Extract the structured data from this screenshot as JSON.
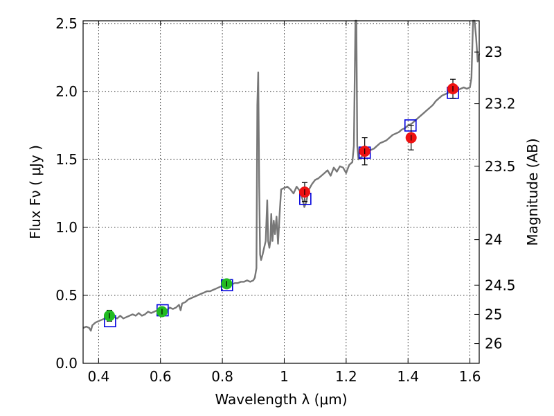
{
  "chart_data": {
    "type": "scatter",
    "xlabel": "Wavelength  λ (μm)",
    "ylabel": "Flux  Fν  ( μJy )",
    "ylabel_right": "Magnitude (AB)",
    "xlim": [
      0.35,
      1.63
    ],
    "ylim": [
      0.0,
      2.52
    ],
    "grid": true,
    "x_ticks": [
      0.4,
      0.6,
      0.8,
      1.0,
      1.2,
      1.4,
      1.6
    ],
    "x_tick_labels": [
      "0.4",
      "0.6",
      "0.8",
      "1",
      "1.2",
      "1.4",
      "1.6"
    ],
    "y_ticks": [
      0.0,
      0.5,
      1.0,
      1.5,
      2.0,
      2.5
    ],
    "y_tick_labels": [
      "0.0",
      "0.5",
      "1.0",
      "1.5",
      "2.0",
      "2.5"
    ],
    "right_ticks": [
      {
        "label": "23",
        "flux": 2.29
      },
      {
        "label": "23.2",
        "flux": 1.91
      },
      {
        "label": "23.5",
        "flux": 1.45
      },
      {
        "label": "24",
        "flux": 0.91
      },
      {
        "label": "24.5",
        "flux": 0.575
      },
      {
        "label": "25",
        "flux": 0.36
      },
      {
        "label": "26",
        "flux": 0.145
      }
    ],
    "series": [
      {
        "marker": "circle",
        "color": "#22bb22",
        "points": [
          {
            "x": 0.435,
            "y": 0.35,
            "err": 0.04
          },
          {
            "x": 0.605,
            "y": 0.38,
            "err": 0.03
          },
          {
            "x": 0.814,
            "y": 0.585,
            "err": 0.03
          }
        ]
      },
      {
        "marker": "circle",
        "color": "#ee1111",
        "points": [
          {
            "x": 1.066,
            "y": 1.26,
            "err": 0.07
          },
          {
            "x": 1.26,
            "y": 1.56,
            "err": 0.1
          },
          {
            "x": 1.41,
            "y": 1.66,
            "err": 0.09
          },
          {
            "x": 1.545,
            "y": 2.02,
            "err": 0.07
          }
        ]
      },
      {
        "marker": "open-square",
        "color": "#0000dd",
        "points": [
          {
            "x": 0.437,
            "y": 0.31
          },
          {
            "x": 0.607,
            "y": 0.39
          },
          {
            "x": 0.815,
            "y": 0.575
          },
          {
            "x": 1.068,
            "y": 1.21
          },
          {
            "x": 1.26,
            "y": 1.55
          },
          {
            "x": 1.408,
            "y": 1.75
          },
          {
            "x": 1.545,
            "y": 1.99
          }
        ]
      }
    ],
    "spectrum": {
      "color": "#777777",
      "points": [
        [
          0.35,
          0.26
        ],
        [
          0.36,
          0.27
        ],
        [
          0.37,
          0.26
        ],
        [
          0.375,
          0.24
        ],
        [
          0.38,
          0.28
        ],
        [
          0.39,
          0.3
        ],
        [
          0.4,
          0.31
        ],
        [
          0.41,
          0.32
        ],
        [
          0.42,
          0.33
        ],
        [
          0.43,
          0.32
        ],
        [
          0.44,
          0.33
        ],
        [
          0.45,
          0.34
        ],
        [
          0.46,
          0.33
        ],
        [
          0.47,
          0.35
        ],
        [
          0.48,
          0.33
        ],
        [
          0.49,
          0.34
        ],
        [
          0.5,
          0.35
        ],
        [
          0.51,
          0.36
        ],
        [
          0.52,
          0.35
        ],
        [
          0.53,
          0.37
        ],
        [
          0.54,
          0.35
        ],
        [
          0.55,
          0.36
        ],
        [
          0.56,
          0.38
        ],
        [
          0.57,
          0.37
        ],
        [
          0.58,
          0.38
        ],
        [
          0.59,
          0.39
        ],
        [
          0.6,
          0.38
        ],
        [
          0.61,
          0.4
        ],
        [
          0.62,
          0.39
        ],
        [
          0.63,
          0.41
        ],
        [
          0.64,
          0.4
        ],
        [
          0.65,
          0.41
        ],
        [
          0.66,
          0.43
        ],
        [
          0.665,
          0.39
        ],
        [
          0.67,
          0.44
        ],
        [
          0.68,
          0.45
        ],
        [
          0.69,
          0.47
        ],
        [
          0.7,
          0.48
        ],
        [
          0.71,
          0.49
        ],
        [
          0.72,
          0.5
        ],
        [
          0.73,
          0.51
        ],
        [
          0.74,
          0.52
        ],
        [
          0.75,
          0.53
        ],
        [
          0.76,
          0.53
        ],
        [
          0.77,
          0.54
        ],
        [
          0.78,
          0.55
        ],
        [
          0.79,
          0.56
        ],
        [
          0.8,
          0.57
        ],
        [
          0.81,
          0.57
        ],
        [
          0.82,
          0.58
        ],
        [
          0.83,
          0.58
        ],
        [
          0.84,
          0.59
        ],
        [
          0.85,
          0.59
        ],
        [
          0.86,
          0.6
        ],
        [
          0.87,
          0.6
        ],
        [
          0.88,
          0.61
        ],
        [
          0.89,
          0.6
        ],
        [
          0.9,
          0.61
        ],
        [
          0.905,
          0.63
        ],
        [
          0.91,
          0.7
        ],
        [
          0.913,
          1.9
        ],
        [
          0.916,
          2.14
        ],
        [
          0.919,
          1.3
        ],
        [
          0.922,
          0.8
        ],
        [
          0.925,
          0.76
        ],
        [
          0.93,
          0.8
        ],
        [
          0.935,
          0.85
        ],
        [
          0.94,
          0.9
        ],
        [
          0.945,
          1.2
        ],
        [
          0.948,
          0.9
        ],
        [
          0.952,
          0.85
        ],
        [
          0.955,
          0.9
        ],
        [
          0.958,
          1.1
        ],
        [
          0.962,
          0.9
        ],
        [
          0.966,
          1.05
        ],
        [
          0.97,
          0.95
        ],
        [
          0.975,
          1.08
        ],
        [
          0.98,
          0.88
        ],
        [
          0.985,
          1.1
        ],
        [
          0.99,
          1.28
        ],
        [
          1.0,
          1.29
        ],
        [
          1.01,
          1.3
        ],
        [
          1.02,
          1.28
        ],
        [
          1.03,
          1.25
        ],
        [
          1.04,
          1.3
        ],
        [
          1.05,
          1.27
        ],
        [
          1.06,
          1.2
        ],
        [
          1.065,
          1.15
        ],
        [
          1.07,
          1.18
        ],
        [
          1.08,
          1.28
        ],
        [
          1.09,
          1.32
        ],
        [
          1.1,
          1.35
        ],
        [
          1.11,
          1.36
        ],
        [
          1.12,
          1.38
        ],
        [
          1.13,
          1.4
        ],
        [
          1.14,
          1.42
        ],
        [
          1.15,
          1.38
        ],
        [
          1.16,
          1.44
        ],
        [
          1.17,
          1.41
        ],
        [
          1.18,
          1.45
        ],
        [
          1.19,
          1.44
        ],
        [
          1.2,
          1.4
        ],
        [
          1.21,
          1.46
        ],
        [
          1.22,
          1.48
        ],
        [
          1.225,
          1.6
        ],
        [
          1.23,
          2.52
        ],
        [
          1.233,
          2.52
        ],
        [
          1.236,
          1.6
        ],
        [
          1.24,
          1.5
        ],
        [
          1.25,
          1.52
        ],
        [
          1.26,
          1.54
        ],
        [
          1.27,
          1.55
        ],
        [
          1.28,
          1.57
        ],
        [
          1.29,
          1.58
        ],
        [
          1.3,
          1.6
        ],
        [
          1.31,
          1.62
        ],
        [
          1.32,
          1.63
        ],
        [
          1.33,
          1.64
        ],
        [
          1.34,
          1.66
        ],
        [
          1.35,
          1.68
        ],
        [
          1.36,
          1.69
        ],
        [
          1.37,
          1.7
        ],
        [
          1.38,
          1.72
        ],
        [
          1.39,
          1.73
        ],
        [
          1.4,
          1.75
        ],
        [
          1.41,
          1.76
        ],
        [
          1.42,
          1.78
        ],
        [
          1.43,
          1.8
        ],
        [
          1.44,
          1.82
        ],
        [
          1.45,
          1.84
        ],
        [
          1.46,
          1.86
        ],
        [
          1.47,
          1.88
        ],
        [
          1.48,
          1.9
        ],
        [
          1.49,
          1.93
        ],
        [
          1.5,
          1.95
        ],
        [
          1.51,
          1.97
        ],
        [
          1.52,
          1.98
        ],
        [
          1.53,
          1.99
        ],
        [
          1.54,
          2.0
        ],
        [
          1.55,
          2.0
        ],
        [
          1.56,
          2.01
        ],
        [
          1.57,
          2.02
        ],
        [
          1.58,
          2.03
        ],
        [
          1.59,
          2.02
        ],
        [
          1.6,
          2.03
        ],
        [
          1.605,
          2.1
        ],
        [
          1.61,
          2.52
        ],
        [
          1.615,
          2.52
        ],
        [
          1.62,
          2.4
        ],
        [
          1.625,
          2.22
        ],
        [
          1.63,
          2.28
        ]
      ]
    }
  }
}
